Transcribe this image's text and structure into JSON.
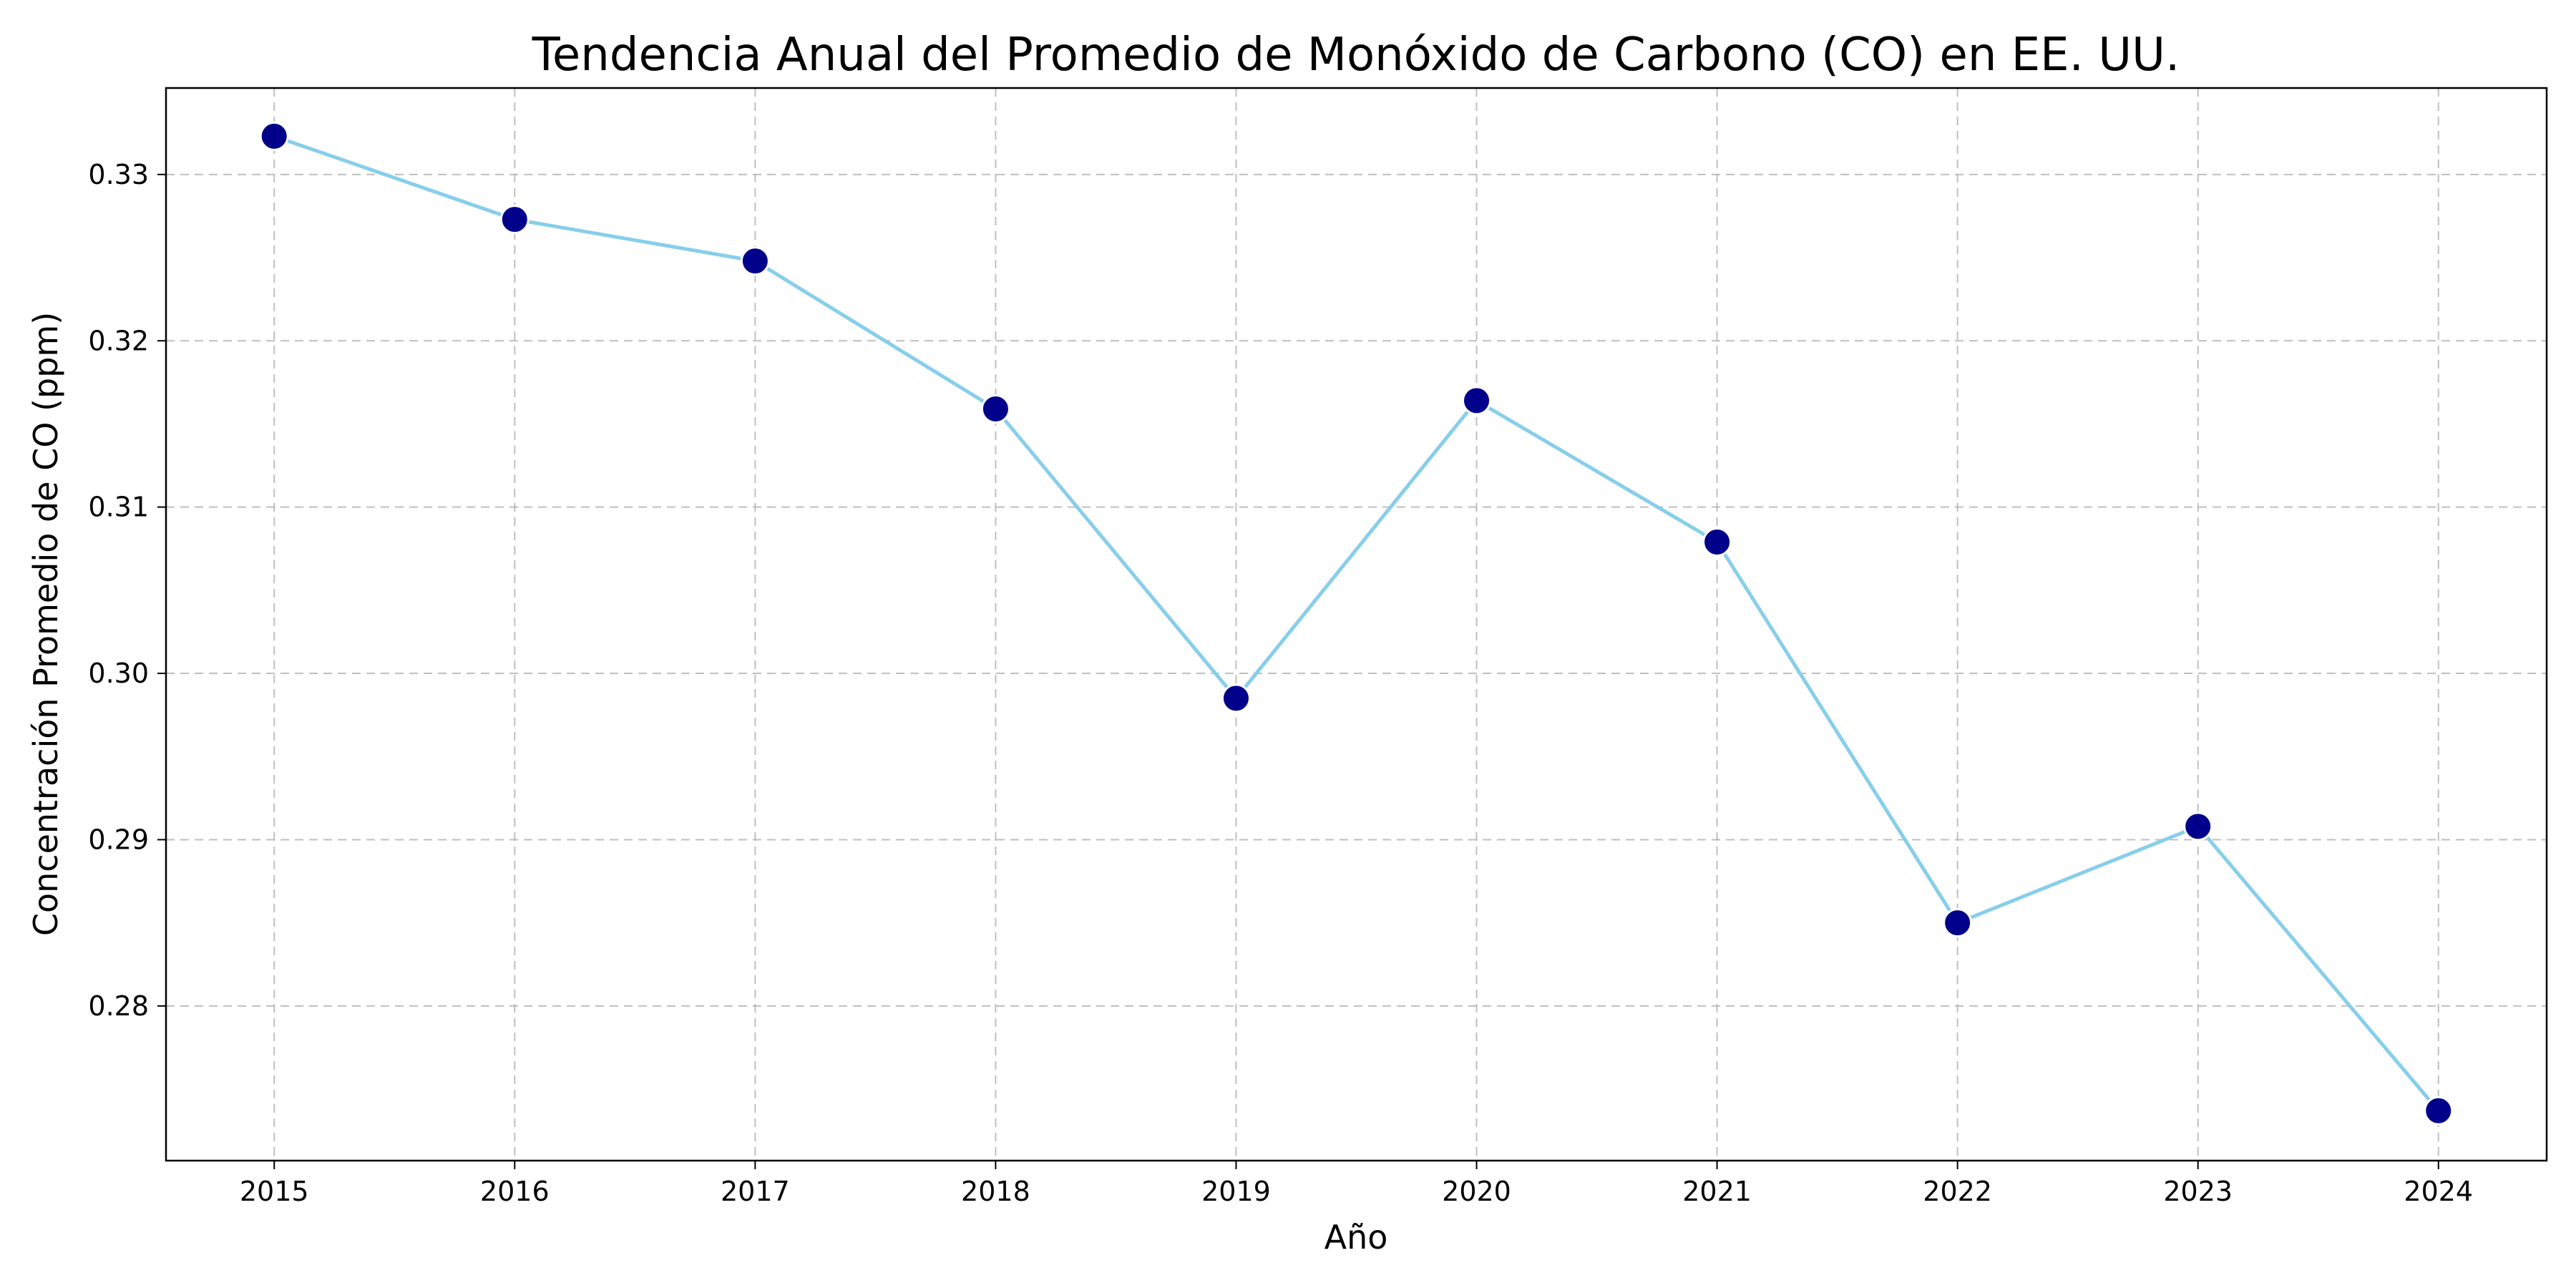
{
  "chart_data": {
    "type": "line",
    "title": "Tendencia Anual del Promedio de Monóxido de Carbono (CO) en EE. UU.",
    "xlabel": "Año",
    "ylabel": "Concentración Promedio de CO (ppm)",
    "x": [
      2015,
      2016,
      2017,
      2018,
      2019,
      2020,
      2021,
      2022,
      2023,
      2024
    ],
    "x_ticks": [
      "2015",
      "2016",
      "2017",
      "2018",
      "2019",
      "2020",
      "2021",
      "2022",
      "2023",
      "2024"
    ],
    "series": [
      {
        "values": [
          0.3323,
          0.3273,
          0.3248,
          0.3159,
          0.2985,
          0.3164,
          0.3079,
          0.285,
          0.2908,
          0.2737
        ],
        "line_color": "#87ceeb",
        "marker_color": "#00008b",
        "marker_edge_color": "#ffffff"
      }
    ],
    "y_ticks": [
      "0.28",
      "0.29",
      "0.30",
      "0.31",
      "0.32",
      "0.33"
    ],
    "y_tick_values": [
      0.28,
      0.29,
      0.3,
      0.31,
      0.32,
      0.33
    ],
    "xlim": [
      2014.55,
      2024.45
    ],
    "ylim": [
      0.2707,
      0.3352
    ],
    "grid": true,
    "legend": "none"
  }
}
